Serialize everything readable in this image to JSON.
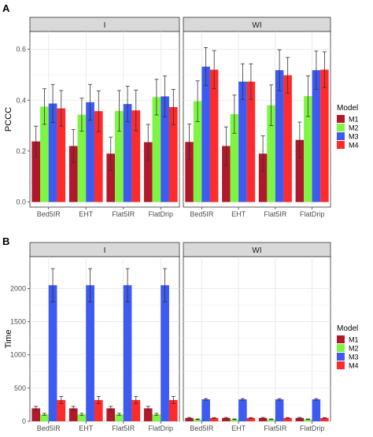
{
  "panel_labels": [
    "A",
    "B"
  ],
  "legend_title": "Model",
  "chart_data": [
    {
      "type": "bar",
      "panel": "A",
      "ylabel": "PCCC",
      "xlabel": "",
      "ylim": [
        -0.02,
        0.67
      ],
      "yticks": [
        0.0,
        0.2,
        0.4,
        0.6
      ],
      "ytick_labels": [
        "0.0",
        "0.2",
        "0.4",
        "0.6"
      ],
      "legend_title": "Model",
      "legend_position": "right",
      "grid": true,
      "colors": {
        "M1": "#b2182b",
        "M2": "#7ef542",
        "M3": "#3d5af1",
        "M4": "#ff2b2b"
      },
      "categories": [
        "Bed5IR",
        "EHT",
        "Flat5IR",
        "FlatDrip"
      ],
      "facets": [
        {
          "label": "I",
          "series": [
            {
              "name": "M1",
              "values": [
                0.238,
                0.22,
                0.19,
                0.235
              ],
              "errors": [
                0.06,
                0.065,
                0.065,
                0.07
              ]
            },
            {
              "name": "M2",
              "values": [
                0.375,
                0.343,
                0.358,
                0.412
              ],
              "errors": [
                0.07,
                0.065,
                0.08,
                0.07
              ]
            },
            {
              "name": "M3",
              "values": [
                0.387,
                0.392,
                0.385,
                0.415
              ],
              "errors": [
                0.075,
                0.07,
                0.07,
                0.08
              ]
            },
            {
              "name": "M4",
              "values": [
                0.368,
                0.357,
                0.36,
                0.373
              ],
              "errors": [
                0.07,
                0.08,
                0.08,
                0.07
              ]
            }
          ]
        },
        {
          "label": "WI",
          "series": [
            {
              "name": "M1",
              "values": [
                0.236,
                0.22,
                0.19,
                0.244
              ],
              "errors": [
                0.07,
                0.075,
                0.07,
                0.07
              ]
            },
            {
              "name": "M2",
              "values": [
                0.396,
                0.345,
                0.38,
                0.416
              ],
              "errors": [
                0.08,
                0.075,
                0.08,
                0.08
              ]
            },
            {
              "name": "M3",
              "values": [
                0.532,
                0.473,
                0.518,
                0.518
              ],
              "errors": [
                0.075,
                0.07,
                0.08,
                0.075
              ]
            },
            {
              "name": "M4",
              "values": [
                0.52,
                0.473,
                0.498,
                0.52
              ],
              "errors": [
                0.075,
                0.07,
                0.07,
                0.07
              ]
            }
          ]
        }
      ]
    },
    {
      "type": "bar",
      "panel": "B",
      "ylabel": "Time",
      "xlabel": "",
      "ylim": [
        0,
        2480
      ],
      "yticks": [
        0,
        500,
        1000,
        1500,
        2000
      ],
      "ytick_labels": [
        "0",
        "500",
        "1000",
        "1500",
        "2000"
      ],
      "legend_title": "Model",
      "legend_position": "right",
      "grid": true,
      "colors": {
        "M1": "#b2182b",
        "M2": "#7ef542",
        "M3": "#3d5af1",
        "M4": "#ff2b2b"
      },
      "categories": [
        "Bed5IR",
        "EHT",
        "Flat5IR",
        "FlatDrip"
      ],
      "facets": [
        {
          "label": "I",
          "series": [
            {
              "name": "M1",
              "values": [
                195,
                195,
                195,
                195
              ],
              "errors": [
                30,
                30,
                30,
                30
              ]
            },
            {
              "name": "M2",
              "values": [
                105,
                105,
                105,
                105
              ],
              "errors": [
                15,
                15,
                15,
                15
              ]
            },
            {
              "name": "M3",
              "values": [
                2050,
                2050,
                2050,
                2050
              ],
              "errors": [
                250,
                250,
                250,
                250
              ]
            },
            {
              "name": "M4",
              "values": [
                320,
                320,
                320,
                320
              ],
              "errors": [
                55,
                55,
                55,
                55
              ]
            }
          ]
        },
        {
          "label": "WI",
          "series": [
            {
              "name": "M1",
              "values": [
                50,
                50,
                50,
                50
              ],
              "errors": [
                8,
                8,
                8,
                8
              ]
            },
            {
              "name": "M2",
              "values": [
                30,
                30,
                30,
                30
              ],
              "errors": [
                5,
                5,
                5,
                5
              ]
            },
            {
              "name": "M3",
              "values": [
                330,
                330,
                330,
                330
              ],
              "errors": [
                12,
                12,
                12,
                12
              ]
            },
            {
              "name": "M4",
              "values": [
                50,
                50,
                50,
                50
              ],
              "errors": [
                6,
                6,
                6,
                6
              ]
            }
          ]
        }
      ]
    }
  ]
}
